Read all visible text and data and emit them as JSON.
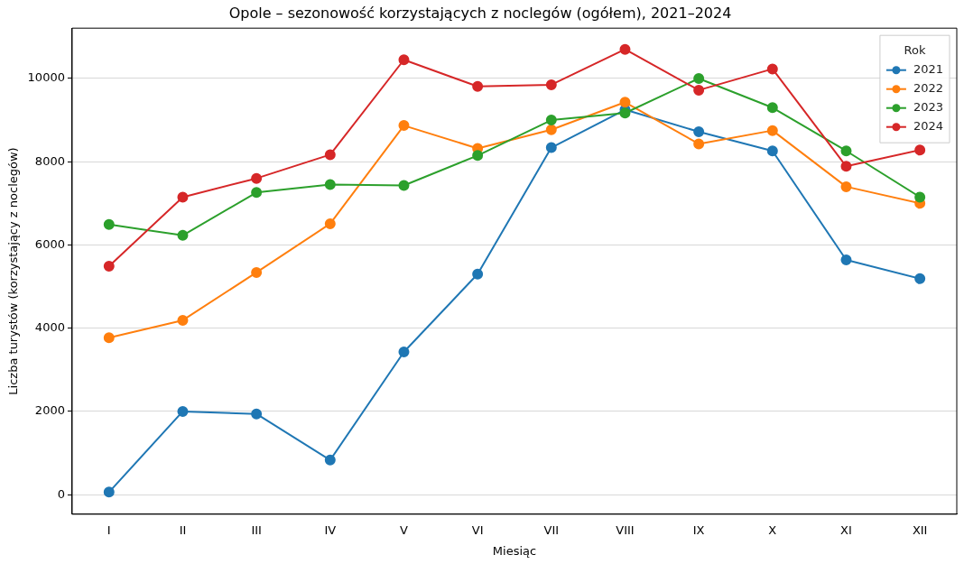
{
  "chart_data": {
    "type": "line",
    "title": "Opole – sezonowość korzystających z noclegów (ogółem), 2021–2024",
    "xlabel": "Miesiąc",
    "ylabel": "Liczba turystów (korzystający z noclegów)",
    "legend_title": "Rok",
    "legend": "top right",
    "grid": "y",
    "marker": "circle",
    "line_style": "solid",
    "categories": [
      "I",
      "II",
      "III",
      "IV",
      "V",
      "VI",
      "VII",
      "VIII",
      "IX",
      "X",
      "XI",
      "XII"
    ],
    "ylim": [
      -470,
      11210
    ],
    "yticks": [
      0,
      2000,
      4000,
      6000,
      8000,
      10000
    ],
    "series": [
      {
        "name": "2021",
        "color": "#1f77b4",
        "values": [
          60,
          2000,
          1940,
          830,
          3430,
          5300,
          8340,
          9250,
          8720,
          8260,
          5640,
          5190
        ]
      },
      {
        "name": "2022",
        "color": "#ff7f0e",
        "values": [
          3770,
          4190,
          5340,
          6510,
          8870,
          8320,
          8770,
          9430,
          8430,
          8750,
          7400,
          7000
        ]
      },
      {
        "name": "2023",
        "color": "#2ca02c",
        "values": [
          6490,
          6230,
          7260,
          7450,
          7430,
          8150,
          9000,
          9170,
          10000,
          9300,
          8260,
          7150
        ]
      },
      {
        "name": "2024",
        "color": "#d62728",
        "values": [
          5490,
          7150,
          7600,
          8170,
          10450,
          9810,
          9850,
          10700,
          9720,
          10230,
          7890,
          8280
        ]
      }
    ]
  }
}
